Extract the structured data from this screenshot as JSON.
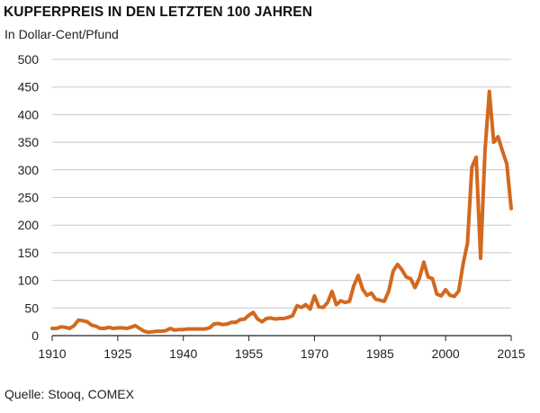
{
  "chart_data": {
    "type": "line",
    "title": "KUPFERPREIS IN DEN LETZTEN 100 JAHREN",
    "subtitle": "In Dollar-Cent/Pfund",
    "source": "Quelle: Stooq, COMEX",
    "ylim": [
      0,
      500
    ],
    "xlim": [
      1910,
      2015
    ],
    "y_ticks": [
      0,
      50,
      100,
      150,
      200,
      250,
      300,
      350,
      400,
      450,
      500
    ],
    "x_ticks": [
      1910,
      1925,
      1940,
      1955,
      1970,
      1985,
      2000,
      2015
    ],
    "grid": true,
    "line_color": "#D2691E",
    "series": [
      {
        "values": [
          [
            1910,
            13
          ],
          [
            1911,
            13
          ],
          [
            1912,
            16
          ],
          [
            1913,
            15
          ],
          [
            1914,
            13
          ],
          [
            1915,
            18
          ],
          [
            1916,
            28
          ],
          [
            1917,
            27
          ],
          [
            1918,
            25
          ],
          [
            1919,
            19
          ],
          [
            1920,
            17
          ],
          [
            1921,
            13
          ],
          [
            1922,
            13
          ],
          [
            1923,
            15
          ],
          [
            1924,
            13
          ],
          [
            1925,
            14
          ],
          [
            1926,
            14
          ],
          [
            1927,
            13
          ],
          [
            1928,
            15
          ],
          [
            1929,
            18
          ],
          [
            1930,
            13
          ],
          [
            1931,
            8
          ],
          [
            1932,
            6
          ],
          [
            1933,
            7
          ],
          [
            1934,
            8
          ],
          [
            1935,
            8
          ],
          [
            1936,
            9
          ],
          [
            1937,
            13
          ],
          [
            1938,
            10
          ],
          [
            1939,
            11
          ],
          [
            1940,
            11
          ],
          [
            1941,
            12
          ],
          [
            1942,
            12
          ],
          [
            1943,
            12
          ],
          [
            1944,
            12
          ],
          [
            1945,
            12
          ],
          [
            1946,
            14
          ],
          [
            1947,
            21
          ],
          [
            1948,
            22
          ],
          [
            1949,
            20
          ],
          [
            1950,
            21
          ],
          [
            1951,
            24
          ],
          [
            1952,
            24
          ],
          [
            1953,
            29
          ],
          [
            1954,
            30
          ],
          [
            1955,
            37
          ],
          [
            1956,
            42
          ],
          [
            1957,
            30
          ],
          [
            1958,
            25
          ],
          [
            1959,
            31
          ],
          [
            1960,
            32
          ],
          [
            1961,
            30
          ],
          [
            1962,
            31
          ],
          [
            1963,
            31
          ],
          [
            1964,
            33
          ],
          [
            1965,
            36
          ],
          [
            1966,
            54
          ],
          [
            1967,
            51
          ],
          [
            1968,
            56
          ],
          [
            1969,
            48
          ],
          [
            1970,
            72
          ],
          [
            1971,
            52
          ],
          [
            1972,
            51
          ],
          [
            1973,
            60
          ],
          [
            1974,
            80
          ],
          [
            1975,
            56
          ],
          [
            1976,
            63
          ],
          [
            1977,
            60
          ],
          [
            1978,
            62
          ],
          [
            1979,
            90
          ],
          [
            1980,
            109
          ],
          [
            1981,
            84
          ],
          [
            1982,
            73
          ],
          [
            1983,
            77
          ],
          [
            1984,
            66
          ],
          [
            1985,
            64
          ],
          [
            1986,
            62
          ],
          [
            1987,
            81
          ],
          [
            1988,
            117
          ],
          [
            1989,
            129
          ],
          [
            1990,
            119
          ],
          [
            1991,
            106
          ],
          [
            1992,
            103
          ],
          [
            1993,
            87
          ],
          [
            1994,
            104
          ],
          [
            1995,
            133
          ],
          [
            1996,
            106
          ],
          [
            1997,
            103
          ],
          [
            1998,
            75
          ],
          [
            1999,
            72
          ],
          [
            2000,
            83
          ],
          [
            2001,
            73
          ],
          [
            2002,
            71
          ],
          [
            2003,
            81
          ],
          [
            2004,
            130
          ],
          [
            2005,
            167
          ],
          [
            2006,
            305
          ],
          [
            2007,
            323
          ],
          [
            2008,
            140
          ],
          [
            2009,
            335
          ],
          [
            2010,
            442
          ],
          [
            2011,
            350
          ],
          [
            2012,
            360
          ],
          [
            2013,
            334
          ],
          [
            2014,
            311
          ],
          [
            2015,
            230
          ]
        ]
      }
    ]
  }
}
